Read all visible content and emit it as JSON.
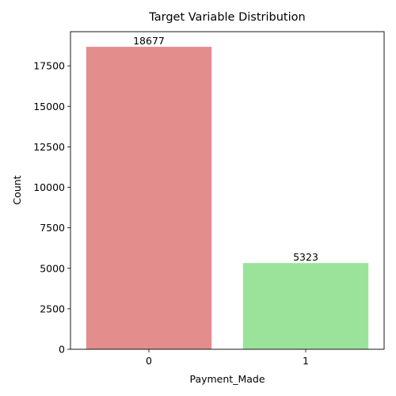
{
  "chart_data": {
    "type": "bar",
    "title": "Target Variable Distribution",
    "xlabel": "Payment_Made",
    "ylabel": "Count",
    "categories": [
      "0",
      "1"
    ],
    "values": [
      18677,
      5323
    ],
    "data_labels": [
      "18677",
      "5323"
    ],
    "bar_colors": [
      "#e38d8d",
      "#9be39b"
    ],
    "ylim": [
      0,
      19611
    ],
    "yticks": [
      0,
      2500,
      5000,
      7500,
      10000,
      12500,
      15000,
      17500
    ],
    "ytick_labels": [
      "0",
      "2500",
      "5000",
      "7500",
      "10000",
      "12500",
      "15000",
      "17500"
    ],
    "grid": false,
    "legend": "none"
  }
}
